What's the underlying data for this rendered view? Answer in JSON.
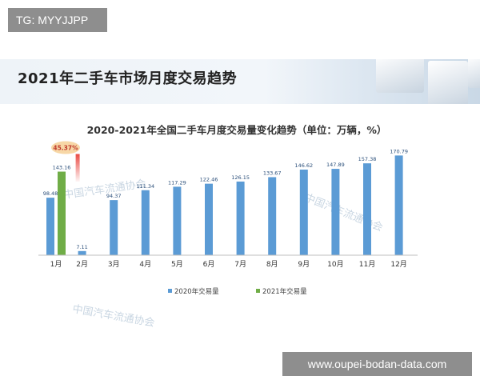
{
  "top_left_badge": "TG: MYYJJPP",
  "page_title": "2021年二手车市场月度交易趋势",
  "bottom_watermark": "www.oupei-bodan-data.com",
  "chart_watermark": "中国汽车流通协会",
  "colors": {
    "series_2020": "#5b9bd5",
    "series_2021": "#70ad47",
    "annotation": "#e8413a"
  },
  "chart_data": {
    "type": "bar",
    "title": "2020-2021年全国二手车月度交易量变化趋势（单位：万辆，%）",
    "categories": [
      "1月",
      "2月",
      "3月",
      "4月",
      "5月",
      "6月",
      "7月",
      "8月",
      "9月",
      "10月",
      "11月",
      "12月"
    ],
    "series": [
      {
        "name": "2020年交易量",
        "values": [
          98.48,
          7.11,
          94.37,
          111.34,
          117.29,
          122.46,
          126.15,
          133.67,
          146.62,
          147.89,
          157.38,
          170.79
        ]
      },
      {
        "name": "2021年交易量",
        "values": [
          143.16,
          null,
          null,
          null,
          null,
          null,
          null,
          null,
          null,
          null,
          null,
          null
        ]
      }
    ],
    "annotations": [
      {
        "text": "45.37%",
        "category": "1月",
        "series": "2021年交易量"
      }
    ],
    "ylim": [
      0,
      185
    ],
    "legend_position": "bottom",
    "grid": false
  }
}
